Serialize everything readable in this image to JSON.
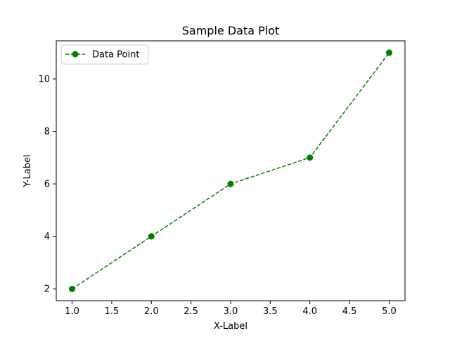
{
  "chart_data": {
    "type": "line",
    "title": "Sample Data Plot",
    "xlabel": "X-Label",
    "ylabel": "Y-Label",
    "x": [
      1,
      2,
      3,
      4,
      5
    ],
    "series": [
      {
        "name": "Data Point",
        "values": [
          2,
          4,
          6,
          7,
          11
        ],
        "color": "#008000",
        "line_style": "dashed",
        "marker": "circle"
      }
    ],
    "xlim": [
      0.8,
      5.2
    ],
    "ylim": [
      1.55,
      11.45
    ],
    "xticks": [
      1.0,
      1.5,
      2.0,
      2.5,
      3.0,
      3.5,
      4.0,
      4.5,
      5.0
    ],
    "xtick_labels": [
      "1.0",
      "1.5",
      "2.0",
      "2.5",
      "3.0",
      "3.5",
      "4.0",
      "4.5",
      "5.0"
    ],
    "yticks": [
      2,
      4,
      6,
      8,
      10
    ],
    "ytick_labels": [
      "2",
      "4",
      "6",
      "8",
      "10"
    ],
    "grid": false,
    "legend_position": "top-left"
  }
}
